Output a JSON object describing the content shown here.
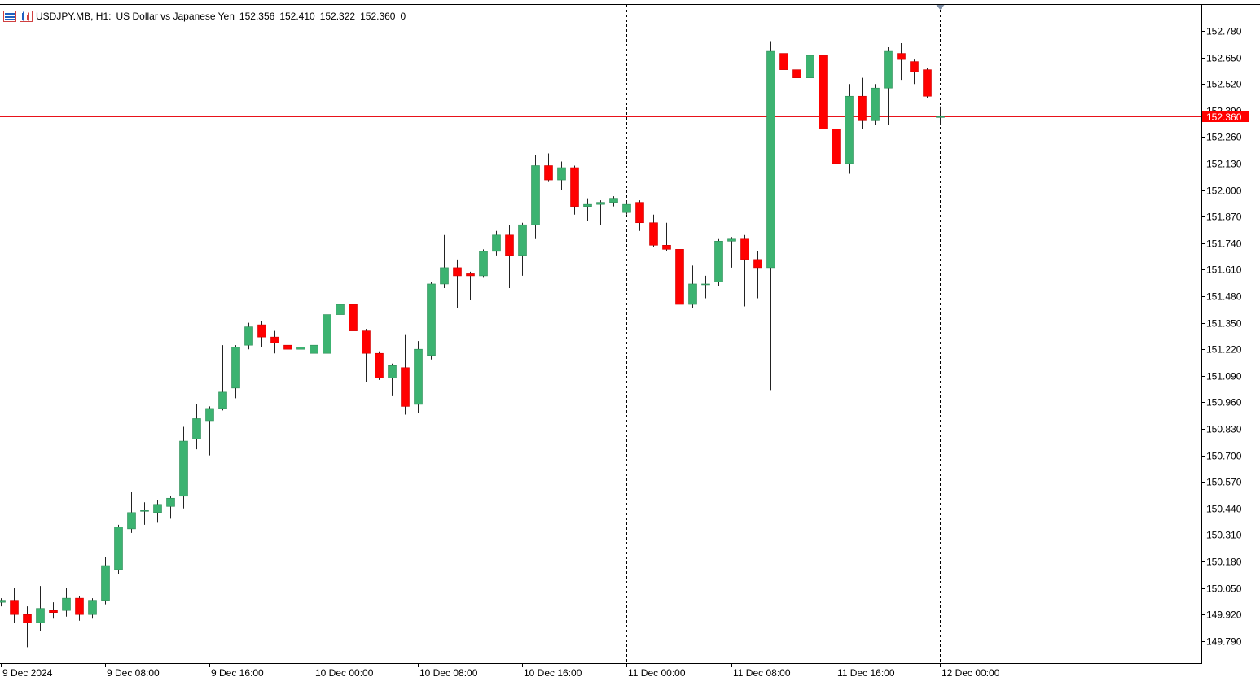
{
  "header": {
    "symbol": "USDJPY.MB, H1:",
    "description": "US Dollar vs Japanese Yen",
    "open": "152.356",
    "high": "152.410",
    "low": "152.322",
    "close": "152.360",
    "volume": "0"
  },
  "colors": {
    "bull": "#3cb371",
    "bear": "#ff0000",
    "wick": "#222222",
    "grid": "#000000",
    "price_line": "#e8121a",
    "price_tag_bg": "#ff0000",
    "price_tag_text": "#ffffff",
    "background": "#ffffff"
  },
  "icons": [
    "indicator-list-icon",
    "chart-properties-icon"
  ],
  "chart_data": {
    "type": "candlestick",
    "timeframe": "H1",
    "y_range": [
      149.7,
      152.82
    ],
    "y_ticks": [
      "152.780",
      "152.650",
      "152.520",
      "152.390",
      "152.260",
      "152.130",
      "152.000",
      "151.870",
      "151.740",
      "151.610",
      "151.480",
      "151.350",
      "151.220",
      "151.090",
      "150.960",
      "150.830",
      "150.700",
      "150.570",
      "150.440",
      "150.310",
      "150.180",
      "150.050",
      "149.920",
      "149.790"
    ],
    "x_labels": [
      "9 Dec 2024",
      "9 Dec 08:00",
      "9 Dec 16:00",
      "10 Dec 00:00",
      "10 Dec 08:00",
      "10 Dec 16:00",
      "11 Dec 00:00",
      "11 Dec 08:00",
      "11 Dec 16:00",
      "12 Dec 00:00"
    ],
    "day_separators": [
      "10 Dec 00:00",
      "11 Dec 00:00",
      "12 Dec 00:00"
    ],
    "current_price": "152.360",
    "candles": [
      {
        "t": "9 Dec 00:00",
        "o": 149.98,
        "h": 150.0,
        "l": 149.96,
        "c": 149.99
      },
      {
        "t": "9 Dec 01:00",
        "o": 149.99,
        "h": 150.05,
        "l": 149.88,
        "c": 149.92
      },
      {
        "t": "9 Dec 02:00",
        "o": 149.92,
        "h": 149.96,
        "l": 149.76,
        "c": 149.88
      },
      {
        "t": "9 Dec 03:00",
        "o": 149.88,
        "h": 150.06,
        "l": 149.84,
        "c": 149.95
      },
      {
        "t": "9 Dec 04:00",
        "o": 149.94,
        "h": 149.98,
        "l": 149.9,
        "c": 149.93
      },
      {
        "t": "9 Dec 05:00",
        "o": 149.94,
        "h": 150.05,
        "l": 149.91,
        "c": 150.0
      },
      {
        "t": "9 Dec 06:00",
        "o": 150.0,
        "h": 150.01,
        "l": 149.89,
        "c": 149.92
      },
      {
        "t": "9 Dec 07:00",
        "o": 149.92,
        "h": 150.0,
        "l": 149.9,
        "c": 149.99
      },
      {
        "t": "9 Dec 08:00",
        "o": 149.99,
        "h": 150.2,
        "l": 149.97,
        "c": 150.16
      },
      {
        "t": "9 Dec 09:00",
        "o": 150.14,
        "h": 150.36,
        "l": 150.12,
        "c": 150.35
      },
      {
        "t": "9 Dec 10:00",
        "o": 150.34,
        "h": 150.52,
        "l": 150.32,
        "c": 150.42
      },
      {
        "t": "9 Dec 11:00",
        "o": 150.43,
        "h": 150.47,
        "l": 150.36,
        "c": 150.43
      },
      {
        "t": "9 Dec 12:00",
        "o": 150.42,
        "h": 150.48,
        "l": 150.37,
        "c": 150.46
      },
      {
        "t": "9 Dec 13:00",
        "o": 150.45,
        "h": 150.5,
        "l": 150.39,
        "c": 150.49
      },
      {
        "t": "9 Dec 14:00",
        "o": 150.5,
        "h": 150.84,
        "l": 150.44,
        "c": 150.77
      },
      {
        "t": "9 Dec 15:00",
        "o": 150.78,
        "h": 150.95,
        "l": 150.73,
        "c": 150.88
      },
      {
        "t": "9 Dec 16:00",
        "o": 150.87,
        "h": 150.94,
        "l": 150.7,
        "c": 150.93
      },
      {
        "t": "9 Dec 17:00",
        "o": 150.93,
        "h": 151.24,
        "l": 150.92,
        "c": 151.01
      },
      {
        "t": "9 Dec 18:00",
        "o": 151.03,
        "h": 151.24,
        "l": 150.98,
        "c": 151.23
      },
      {
        "t": "9 Dec 19:00",
        "o": 151.24,
        "h": 151.35,
        "l": 151.22,
        "c": 151.33
      },
      {
        "t": "9 Dec 20:00",
        "o": 151.34,
        "h": 151.36,
        "l": 151.23,
        "c": 151.28
      },
      {
        "t": "9 Dec 21:00",
        "o": 151.28,
        "h": 151.31,
        "l": 151.2,
        "c": 151.25
      },
      {
        "t": "9 Dec 22:00",
        "o": 151.24,
        "h": 151.29,
        "l": 151.17,
        "c": 151.22
      },
      {
        "t": "9 Dec 23:00",
        "o": 151.22,
        "h": 151.24,
        "l": 151.15,
        "c": 151.23
      },
      {
        "t": "10 Dec 00:00",
        "o": 151.2,
        "h": 151.24,
        "l": 151.16,
        "c": 151.24
      },
      {
        "t": "10 Dec 01:00",
        "o": 151.2,
        "h": 151.43,
        "l": 151.18,
        "c": 151.39
      },
      {
        "t": "10 Dec 02:00",
        "o": 151.39,
        "h": 151.47,
        "l": 151.24,
        "c": 151.44
      },
      {
        "t": "10 Dec 03:00",
        "o": 151.44,
        "h": 151.54,
        "l": 151.28,
        "c": 151.31
      },
      {
        "t": "10 Dec 04:00",
        "o": 151.31,
        "h": 151.32,
        "l": 151.06,
        "c": 151.2
      },
      {
        "t": "10 Dec 05:00",
        "o": 151.2,
        "h": 151.21,
        "l": 151.07,
        "c": 151.08
      },
      {
        "t": "10 Dec 06:00",
        "o": 151.08,
        "h": 151.15,
        "l": 150.99,
        "c": 151.14
      },
      {
        "t": "10 Dec 07:00",
        "o": 151.13,
        "h": 151.29,
        "l": 150.9,
        "c": 150.94
      },
      {
        "t": "10 Dec 08:00",
        "o": 150.95,
        "h": 151.26,
        "l": 150.91,
        "c": 151.22
      },
      {
        "t": "10 Dec 09:00",
        "o": 151.19,
        "h": 151.55,
        "l": 151.17,
        "c": 151.54
      },
      {
        "t": "10 Dec 10:00",
        "o": 151.54,
        "h": 151.78,
        "l": 151.52,
        "c": 151.62
      },
      {
        "t": "10 Dec 11:00",
        "o": 151.62,
        "h": 151.66,
        "l": 151.42,
        "c": 151.58
      },
      {
        "t": "10 Dec 12:00",
        "o": 151.59,
        "h": 151.6,
        "l": 151.46,
        "c": 151.58
      },
      {
        "t": "10 Dec 13:00",
        "o": 151.58,
        "h": 151.71,
        "l": 151.57,
        "c": 151.7
      },
      {
        "t": "10 Dec 14:00",
        "o": 151.7,
        "h": 151.8,
        "l": 151.68,
        "c": 151.78
      },
      {
        "t": "10 Dec 15:00",
        "o": 151.78,
        "h": 151.83,
        "l": 151.52,
        "c": 151.68
      },
      {
        "t": "10 Dec 16:00",
        "o": 151.68,
        "h": 151.84,
        "l": 151.58,
        "c": 151.83
      },
      {
        "t": "10 Dec 17:00",
        "o": 151.83,
        "h": 152.17,
        "l": 151.76,
        "c": 152.12
      },
      {
        "t": "10 Dec 18:00",
        "o": 152.12,
        "h": 152.18,
        "l": 152.04,
        "c": 152.05
      },
      {
        "t": "10 Dec 19:00",
        "o": 152.05,
        "h": 152.14,
        "l": 152.0,
        "c": 152.11
      },
      {
        "t": "10 Dec 20:00",
        "o": 152.11,
        "h": 152.12,
        "l": 151.88,
        "c": 151.92
      },
      {
        "t": "10 Dec 21:00",
        "o": 151.92,
        "h": 151.96,
        "l": 151.85,
        "c": 151.93
      },
      {
        "t": "10 Dec 22:00",
        "o": 151.93,
        "h": 151.95,
        "l": 151.83,
        "c": 151.94
      },
      {
        "t": "10 Dec 23:00",
        "o": 151.94,
        "h": 151.97,
        "l": 151.92,
        "c": 151.96
      },
      {
        "t": "11 Dec 00:00",
        "o": 151.89,
        "h": 151.95,
        "l": 151.88,
        "c": 151.93
      },
      {
        "t": "11 Dec 01:00",
        "o": 151.94,
        "h": 151.95,
        "l": 151.8,
        "c": 151.84
      },
      {
        "t": "11 Dec 02:00",
        "o": 151.84,
        "h": 151.88,
        "l": 151.72,
        "c": 151.73
      },
      {
        "t": "11 Dec 03:00",
        "o": 151.73,
        "h": 151.84,
        "l": 151.7,
        "c": 151.71
      },
      {
        "t": "11 Dec 04:00",
        "o": 151.71,
        "h": 151.71,
        "l": 151.44,
        "c": 151.44
      },
      {
        "t": "11 Dec 05:00",
        "o": 151.44,
        "h": 151.63,
        "l": 151.42,
        "c": 151.54
      },
      {
        "t": "11 Dec 06:00",
        "o": 151.54,
        "h": 151.58,
        "l": 151.47,
        "c": 151.54
      },
      {
        "t": "11 Dec 07:00",
        "o": 151.55,
        "h": 151.76,
        "l": 151.53,
        "c": 151.75
      },
      {
        "t": "11 Dec 08:00",
        "o": 151.75,
        "h": 151.77,
        "l": 151.62,
        "c": 151.76
      },
      {
        "t": "11 Dec 09:00",
        "o": 151.76,
        "h": 151.78,
        "l": 151.43,
        "c": 151.66
      },
      {
        "t": "11 Dec 10:00",
        "o": 151.66,
        "h": 151.7,
        "l": 151.47,
        "c": 151.62
      },
      {
        "t": "11 Dec 11:00",
        "o": 151.62,
        "h": 152.73,
        "l": 151.02,
        "c": 152.68
      },
      {
        "t": "11 Dec 12:00",
        "o": 152.67,
        "h": 152.79,
        "l": 152.49,
        "c": 152.59
      },
      {
        "t": "11 Dec 13:00",
        "o": 152.59,
        "h": 152.7,
        "l": 152.51,
        "c": 152.55
      },
      {
        "t": "11 Dec 14:00",
        "o": 152.55,
        "h": 152.69,
        "l": 152.53,
        "c": 152.66
      },
      {
        "t": "11 Dec 15:00",
        "o": 152.66,
        "h": 152.84,
        "l": 152.06,
        "c": 152.3
      },
      {
        "t": "11 Dec 16:00",
        "o": 152.3,
        "h": 152.32,
        "l": 151.92,
        "c": 152.13
      },
      {
        "t": "11 Dec 17:00",
        "o": 152.13,
        "h": 152.52,
        "l": 152.08,
        "c": 152.46
      },
      {
        "t": "11 Dec 18:00",
        "o": 152.46,
        "h": 152.55,
        "l": 152.3,
        "c": 152.34
      },
      {
        "t": "11 Dec 19:00",
        "o": 152.34,
        "h": 152.52,
        "l": 152.32,
        "c": 152.5
      },
      {
        "t": "11 Dec 20:00",
        "o": 152.5,
        "h": 152.7,
        "l": 152.32,
        "c": 152.68
      },
      {
        "t": "11 Dec 21:00",
        "o": 152.67,
        "h": 152.72,
        "l": 152.54,
        "c": 152.64
      },
      {
        "t": "11 Dec 22:00",
        "o": 152.63,
        "h": 152.64,
        "l": 152.52,
        "c": 152.58
      },
      {
        "t": "11 Dec 23:00",
        "o": 152.59,
        "h": 152.6,
        "l": 152.45,
        "c": 152.46
      },
      {
        "t": "12 Dec 00:00",
        "o": 152.356,
        "h": 152.41,
        "l": 152.322,
        "c": 152.36
      }
    ]
  }
}
